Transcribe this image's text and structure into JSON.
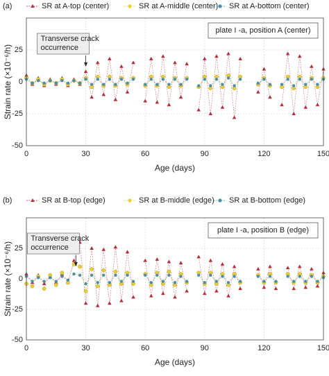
{
  "chart_data": [
    {
      "type": "scatter",
      "panel": "(a)",
      "annotation": "plate I -a, position A (center)",
      "callout": "Transverse crack occurrence",
      "callout_x": 30,
      "xlabel": "Age (days)",
      "ylabel": "Strain rate (×10⁻⁶/h)",
      "xlim": [
        0,
        150
      ],
      "xticks": [
        0,
        30,
        60,
        90,
        120,
        150
      ],
      "ylim": [
        -50,
        50
      ],
      "yticks": [
        -50,
        -25,
        0,
        25
      ],
      "grid": true,
      "x": [
        0,
        3,
        6,
        9,
        12,
        15,
        18,
        21,
        24,
        27,
        30,
        33,
        36,
        39,
        42,
        45,
        48,
        51,
        54,
        57,
        60,
        63,
        66,
        69,
        72,
        75,
        78,
        81,
        84,
        87,
        90,
        93,
        96,
        99,
        102,
        105,
        108,
        111,
        114,
        117,
        120,
        123,
        126,
        129,
        132,
        135,
        138,
        141,
        144,
        147,
        150
      ],
      "series": [
        {
          "name": "SR at A-top (center)",
          "color": "#b0303f",
          "marker": "triangle",
          "values": [
            5,
            -2,
            3,
            -3,
            2,
            -2,
            3,
            -3,
            2,
            -2,
            8,
            -12,
            15,
            -10,
            18,
            -14,
            12,
            -8,
            15,
            null,
            -15,
            18,
            -16,
            20,
            -18,
            15,
            -12,
            14,
            null,
            -22,
            18,
            -25,
            20,
            -20,
            22,
            -28,
            18,
            null,
            null,
            -8,
            10,
            -12,
            null,
            -18,
            22,
            -25,
            20,
            -20,
            12,
            -18,
            10
          ]
        },
        {
          "name": "SR at A-middle (center)",
          "color": "#e6cf3a",
          "marker": "circle",
          "values": [
            3,
            -1,
            2,
            -2,
            1,
            -1,
            2,
            -2,
            1,
            -1,
            3,
            -4,
            4,
            -3,
            4,
            -3,
            3,
            -2,
            3,
            null,
            -3,
            4,
            -3,
            4,
            -4,
            3,
            -3,
            3,
            null,
            -4,
            4,
            -5,
            4,
            -4,
            5,
            -5,
            4,
            null,
            null,
            -2,
            3,
            -3,
            null,
            -4,
            4,
            -5,
            4,
            -4,
            3,
            -4,
            3
          ]
        },
        {
          "name": "SR at A-bottom (center)",
          "color": "#4b8fa3",
          "marker": "dot",
          "values": [
            2,
            -1,
            1,
            -1,
            1,
            -1,
            1,
            -1,
            1,
            -1,
            2,
            -2,
            2,
            -2,
            2,
            -2,
            2,
            -1,
            2,
            null,
            -2,
            2,
            -2,
            2,
            -2,
            2,
            -2,
            2,
            null,
            -3,
            2,
            -3,
            2,
            -2,
            3,
            -3,
            2,
            null,
            null,
            -1,
            2,
            -2,
            null,
            -2,
            2,
            -3,
            2,
            -2,
            2,
            -2,
            2
          ]
        }
      ]
    },
    {
      "type": "scatter",
      "panel": "(b)",
      "annotation": "plate I -a, position B (edge)",
      "callout": "Transverse crack occurrence",
      "callout_x": 25,
      "xlabel": "Age (days)",
      "ylabel": "Strain rate (×10⁻⁶/h)",
      "xlim": [
        0,
        150
      ],
      "xticks": [
        0,
        30,
        60,
        90,
        120,
        150
      ],
      "ylim": [
        -50,
        50
      ],
      "yticks": [
        -50,
        -25,
        0,
        25
      ],
      "grid": true,
      "x": [
        0,
        3,
        6,
        9,
        12,
        15,
        18,
        21,
        24,
        27,
        30,
        33,
        36,
        39,
        42,
        45,
        48,
        51,
        54,
        57,
        60,
        63,
        66,
        69,
        72,
        75,
        78,
        81,
        84,
        87,
        90,
        93,
        96,
        99,
        102,
        105,
        108,
        111,
        114,
        117,
        120,
        123,
        126,
        129,
        132,
        135,
        138,
        141,
        144,
        147,
        150
      ],
      "series": [
        {
          "name": "SR at B-top (edge)",
          "color": "#b0303f",
          "marker": "triangle",
          "values": [
            4,
            -3,
            3,
            -4,
            2,
            -3,
            4,
            -3,
            15,
            30,
            -20,
            25,
            -22,
            24,
            -20,
            26,
            -18,
            22,
            -15,
            null,
            15,
            -14,
            16,
            -12,
            14,
            -15,
            13,
            -10,
            null,
            18,
            -12,
            15,
            -10,
            12,
            -14,
            10,
            -8,
            null,
            null,
            8,
            -7,
            10,
            -8,
            null,
            9,
            -8,
            10,
            -7,
            8,
            -6,
            5
          ]
        },
        {
          "name": "SR at B-middle (edge)",
          "color": "#e6cf3a",
          "marker": "circle",
          "values": [
            -4,
            -6,
            2,
            -8,
            3,
            -5,
            5,
            -3,
            12,
            10,
            -10,
            8,
            -6,
            7,
            -5,
            6,
            -4,
            5,
            -4,
            null,
            4,
            -5,
            5,
            -4,
            6,
            -5,
            4,
            -3,
            null,
            5,
            -4,
            5,
            -4,
            4,
            -5,
            4,
            -3,
            null,
            null,
            3,
            -3,
            4,
            -3,
            null,
            4,
            -3,
            4,
            -3,
            3,
            -3,
            2
          ]
        },
        {
          "name": "SR at B-bottom (edge)",
          "color": "#4b8fa3",
          "marker": "dot",
          "values": [
            2,
            -2,
            1,
            -2,
            1,
            -2,
            2,
            -1,
            4,
            3,
            -4,
            3,
            -3,
            3,
            -3,
            3,
            -2,
            3,
            -2,
            null,
            3,
            -3,
            3,
            -2,
            3,
            -3,
            2,
            -2,
            null,
            3,
            -3,
            3,
            -2,
            2,
            -3,
            2,
            -2,
            null,
            null,
            2,
            -2,
            2,
            -2,
            null,
            2,
            -2,
            2,
            -2,
            2,
            -2,
            1
          ]
        }
      ]
    }
  ]
}
